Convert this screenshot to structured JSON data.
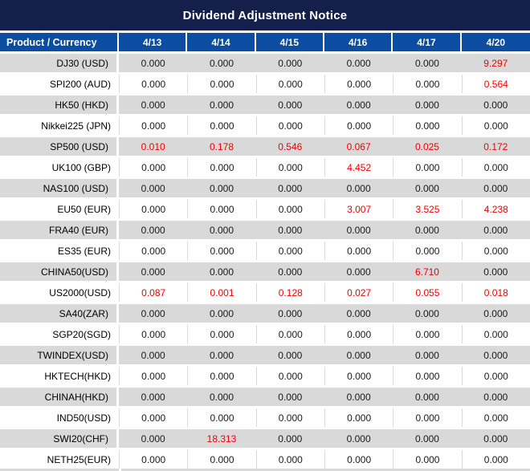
{
  "title": "Dividend Adjustment Notice",
  "colors": {
    "title_bg": "#15204a",
    "header_bg": "#0c4da2",
    "row_alt_bg": "#d9d9d9",
    "grid_line": "#d9d9d9",
    "value_black": "#1a1a1a",
    "value_red": "#f20000",
    "header_text": "#ffffff"
  },
  "table": {
    "product_header": "Product / Currency",
    "date_headers": [
      "4/13",
      "4/14",
      "4/15",
      "4/16",
      "4/17",
      "4/20"
    ],
    "rows": [
      {
        "product": "DJ30 (USD)",
        "values": [
          "0.000",
          "0.000",
          "0.000",
          "0.000",
          "0.000",
          "9.297"
        ],
        "red": [
          false,
          false,
          false,
          false,
          false,
          true
        ]
      },
      {
        "product": "SPI200 (AUD)",
        "values": [
          "0.000",
          "0.000",
          "0.000",
          "0.000",
          "0.000",
          "0.564"
        ],
        "red": [
          false,
          false,
          false,
          false,
          false,
          true
        ]
      },
      {
        "product": "HK50 (HKD)",
        "values": [
          "0.000",
          "0.000",
          "0.000",
          "0.000",
          "0.000",
          "0.000"
        ],
        "red": [
          false,
          false,
          false,
          false,
          false,
          false
        ]
      },
      {
        "product": "Nikkei225 (JPN)",
        "values": [
          "0.000",
          "0.000",
          "0.000",
          "0.000",
          "0.000",
          "0.000"
        ],
        "red": [
          false,
          false,
          false,
          false,
          false,
          false
        ]
      },
      {
        "product": "SP500 (USD)",
        "values": [
          "0.010",
          "0.178",
          "0.546",
          "0.067",
          "0.025",
          "0.172"
        ],
        "red": [
          true,
          true,
          true,
          true,
          true,
          true
        ]
      },
      {
        "product": "UK100 (GBP)",
        "values": [
          "0.000",
          "0.000",
          "0.000",
          "4.452",
          "0.000",
          "0.000"
        ],
        "red": [
          false,
          false,
          false,
          true,
          false,
          false
        ]
      },
      {
        "product": "NAS100 (USD)",
        "values": [
          "0.000",
          "0.000",
          "0.000",
          "0.000",
          "0.000",
          "0.000"
        ],
        "red": [
          false,
          false,
          false,
          false,
          false,
          false
        ]
      },
      {
        "product": "EU50 (EUR)",
        "values": [
          "0.000",
          "0.000",
          "0.000",
          "3.007",
          "3.525",
          "4.238"
        ],
        "red": [
          false,
          false,
          false,
          true,
          true,
          true
        ]
      },
      {
        "product": "FRA40 (EUR)",
        "values": [
          "0.000",
          "0.000",
          "0.000",
          "0.000",
          "0.000",
          "0.000"
        ],
        "red": [
          false,
          false,
          false,
          false,
          false,
          false
        ]
      },
      {
        "product": "ES35 (EUR)",
        "values": [
          "0.000",
          "0.000",
          "0.000",
          "0.000",
          "0.000",
          "0.000"
        ],
        "red": [
          false,
          false,
          false,
          false,
          false,
          false
        ]
      },
      {
        "product": "CHINA50(USD)",
        "values": [
          "0.000",
          "0.000",
          "0.000",
          "0.000",
          "6.710",
          "0.000"
        ],
        "red": [
          false,
          false,
          false,
          false,
          true,
          false
        ]
      },
      {
        "product": "US2000(USD)",
        "values": [
          "0.087",
          "0.001",
          "0.128",
          "0.027",
          "0.055",
          "0.018"
        ],
        "red": [
          true,
          true,
          true,
          true,
          true,
          true
        ]
      },
      {
        "product": "SA40(ZAR)",
        "values": [
          "0.000",
          "0.000",
          "0.000",
          "0.000",
          "0.000",
          "0.000"
        ],
        "red": [
          false,
          false,
          false,
          false,
          false,
          false
        ]
      },
      {
        "product": "SGP20(SGD)",
        "values": [
          "0.000",
          "0.000",
          "0.000",
          "0.000",
          "0.000",
          "0.000"
        ],
        "red": [
          false,
          false,
          false,
          false,
          false,
          false
        ]
      },
      {
        "product": "TWINDEX(USD)",
        "values": [
          "0.000",
          "0.000",
          "0.000",
          "0.000",
          "0.000",
          "0.000"
        ],
        "red": [
          false,
          false,
          false,
          false,
          false,
          false
        ]
      },
      {
        "product": "HKTECH(HKD)",
        "values": [
          "0.000",
          "0.000",
          "0.000",
          "0.000",
          "0.000",
          "0.000"
        ],
        "red": [
          false,
          false,
          false,
          false,
          false,
          false
        ]
      },
      {
        "product": "CHINAH(HKD)",
        "values": [
          "0.000",
          "0.000",
          "0.000",
          "0.000",
          "0.000",
          "0.000"
        ],
        "red": [
          false,
          false,
          false,
          false,
          false,
          false
        ]
      },
      {
        "product": "IND50(USD)",
        "values": [
          "0.000",
          "0.000",
          "0.000",
          "0.000",
          "0.000",
          "0.000"
        ],
        "red": [
          false,
          false,
          false,
          false,
          false,
          false
        ]
      },
      {
        "product": "SWI20(CHF)",
        "values": [
          "0.000",
          "18.313",
          "0.000",
          "0.000",
          "0.000",
          "0.000"
        ],
        "red": [
          false,
          true,
          false,
          false,
          false,
          false
        ]
      },
      {
        "product": "NETH25(EUR)",
        "values": [
          "0.000",
          "0.000",
          "0.000",
          "0.000",
          "0.000",
          "0.000"
        ],
        "red": [
          false,
          false,
          false,
          false,
          false,
          false
        ]
      }
    ]
  }
}
